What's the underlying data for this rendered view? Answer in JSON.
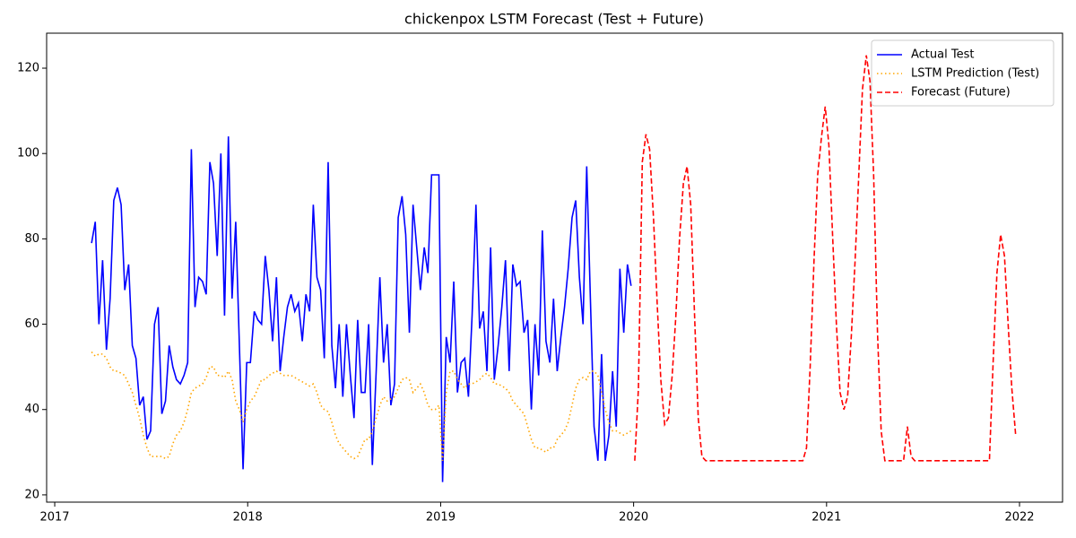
{
  "chart_data": {
    "type": "line",
    "title": "chickenpox LSTM Forecast (Test + Future)",
    "xlim": [
      2016.958,
      2022.223
    ],
    "xticks": [
      2017,
      2018,
      2019,
      2020,
      2021,
      2022
    ],
    "ylim": [
      18.3,
      128.2
    ],
    "yticks": [
      20,
      40,
      60,
      80,
      100,
      120
    ],
    "grid": false,
    "legend": "upper right",
    "series": [
      {
        "name": "Actual Test",
        "color": "#0000ff",
        "style": "solid",
        "x": [
          2017.191,
          2017.21,
          2017.229,
          2017.248,
          2017.268,
          2017.287,
          2017.306,
          2017.325,
          2017.344,
          2017.363,
          2017.383,
          2017.402,
          2017.421,
          2017.44,
          2017.459,
          2017.478,
          2017.497,
          2017.517,
          2017.536,
          2017.555,
          2017.574,
          2017.593,
          2017.612,
          2017.631,
          2017.651,
          2017.67,
          2017.689,
          2017.708,
          2017.727,
          2017.746,
          2017.766,
          2017.785,
          2017.804,
          2017.823,
          2017.842,
          2017.861,
          2017.88,
          2017.9,
          2017.919,
          2017.938,
          2017.957,
          2017.976,
          2017.995,
          2018.014,
          2018.034,
          2018.053,
          2018.072,
          2018.091,
          2018.11,
          2018.129,
          2018.149,
          2018.168,
          2018.187,
          2018.206,
          2018.225,
          2018.244,
          2018.263,
          2018.283,
          2018.302,
          2018.321,
          2018.34,
          2018.359,
          2018.378,
          2018.397,
          2018.417,
          2018.436,
          2018.455,
          2018.474,
          2018.493,
          2018.512,
          2018.532,
          2018.551,
          2018.57,
          2018.589,
          2018.608,
          2018.627,
          2018.646,
          2018.666,
          2018.685,
          2018.704,
          2018.723,
          2018.742,
          2018.761,
          2018.78,
          2018.8,
          2018.819,
          2018.838,
          2018.857,
          2018.876,
          2018.895,
          2018.915,
          2018.934,
          2018.953,
          2018.972,
          2018.991,
          2019.01,
          2019.029,
          2019.049,
          2019.068,
          2019.087,
          2019.106,
          2019.125,
          2019.144,
          2019.163,
          2019.183,
          2019.202,
          2019.221,
          2019.24,
          2019.259,
          2019.278,
          2019.298,
          2019.317,
          2019.336,
          2019.355,
          2019.374,
          2019.393,
          2019.412,
          2019.432,
          2019.451,
          2019.47,
          2019.489,
          2019.508,
          2019.527,
          2019.546,
          2019.566,
          2019.585,
          2019.604,
          2019.623,
          2019.642,
          2019.661,
          2019.681,
          2019.7,
          2019.719,
          2019.738,
          2019.757,
          2019.776,
          2019.795,
          2019.815,
          2019.834,
          2019.853,
          2019.872,
          2019.891,
          2019.91,
          2019.929,
          2019.949,
          2019.968,
          2019.987
        ],
        "values": [
          79,
          84,
          60,
          75,
          54,
          66,
          89,
          92,
          88,
          68,
          74,
          55,
          52,
          41,
          43,
          33,
          35,
          60,
          64,
          39,
          42,
          55,
          50,
          47,
          46,
          48,
          51,
          101,
          64,
          71,
          70,
          67,
          98,
          93,
          76,
          100,
          62,
          104,
          66,
          84,
          55,
          26,
          51,
          51,
          63,
          61,
          60,
          76,
          68,
          56,
          71,
          49,
          57,
          64,
          67,
          63,
          65,
          56,
          67,
          63,
          88,
          71,
          68,
          52,
          98,
          55,
          45,
          60,
          43,
          60,
          48,
          38,
          61,
          44,
          44,
          60,
          27,
          49,
          71,
          51,
          60,
          41,
          46,
          85,
          90,
          81,
          58,
          88,
          78,
          68,
          78,
          72,
          95,
          95,
          95,
          23,
          57,
          51,
          70,
          44,
          51,
          52,
          43,
          62,
          88,
          59,
          63,
          49,
          78,
          47,
          55,
          64,
          75,
          49,
          74,
          69,
          70,
          58,
          61,
          40,
          60,
          48,
          82,
          56,
          51,
          66,
          49,
          57,
          64,
          73,
          85,
          89,
          71,
          60,
          97,
          66,
          36,
          28,
          53,
          28,
          34,
          49,
          36,
          73,
          58,
          74,
          69
        ]
      },
      {
        "name": "LSTM Prediction (Test)",
        "color": "#ffa500",
        "style": "dotted",
        "x": [
          2017.191,
          2017.21,
          2017.229,
          2017.248,
          2017.268,
          2017.287,
          2017.306,
          2017.325,
          2017.344,
          2017.363,
          2017.383,
          2017.402,
          2017.421,
          2017.44,
          2017.459,
          2017.478,
          2017.497,
          2017.517,
          2017.536,
          2017.555,
          2017.574,
          2017.593,
          2017.612,
          2017.631,
          2017.651,
          2017.67,
          2017.689,
          2017.708,
          2017.727,
          2017.746,
          2017.766,
          2017.785,
          2017.804,
          2017.823,
          2017.842,
          2017.861,
          2017.88,
          2017.9,
          2017.919,
          2017.938,
          2017.957,
          2017.976,
          2017.995,
          2018.014,
          2018.034,
          2018.053,
          2018.072,
          2018.091,
          2018.11,
          2018.129,
          2018.149,
          2018.168,
          2018.187,
          2018.206,
          2018.225,
          2018.244,
          2018.263,
          2018.283,
          2018.302,
          2018.321,
          2018.34,
          2018.359,
          2018.378,
          2018.397,
          2018.417,
          2018.436,
          2018.455,
          2018.474,
          2018.493,
          2018.512,
          2018.532,
          2018.551,
          2018.57,
          2018.589,
          2018.608,
          2018.627,
          2018.646,
          2018.666,
          2018.685,
          2018.704,
          2018.723,
          2018.742,
          2018.761,
          2018.78,
          2018.8,
          2018.819,
          2018.838,
          2018.857,
          2018.876,
          2018.895,
          2018.915,
          2018.934,
          2018.953,
          2018.972,
          2018.991,
          2019.01,
          2019.029,
          2019.049,
          2019.068,
          2019.087,
          2019.106,
          2019.125,
          2019.144,
          2019.163,
          2019.183,
          2019.202,
          2019.221,
          2019.24,
          2019.259,
          2019.278,
          2019.298,
          2019.317,
          2019.336,
          2019.355,
          2019.374,
          2019.393,
          2019.412,
          2019.432,
          2019.451,
          2019.47,
          2019.489,
          2019.508,
          2019.527,
          2019.546,
          2019.566,
          2019.585,
          2019.604,
          2019.623,
          2019.642,
          2019.661,
          2019.681,
          2019.7,
          2019.719,
          2019.738,
          2019.757,
          2019.776,
          2019.795,
          2019.815,
          2019.834,
          2019.853,
          2019.872,
          2019.891,
          2019.91,
          2019.929,
          2019.949,
          2019.968,
          2019.987
        ],
        "values": [
          53.5,
          52.5,
          53,
          53,
          52,
          50,
          49,
          49,
          48.5,
          48,
          46,
          44,
          41,
          38,
          34,
          31,
          29,
          29,
          29,
          29,
          28.5,
          29,
          32,
          34,
          35,
          37,
          40,
          44,
          45,
          45.5,
          46,
          47.5,
          50,
          50,
          48,
          48,
          47.5,
          49,
          47,
          42,
          40,
          37,
          40,
          42,
          43,
          45,
          47,
          47,
          48,
          48.5,
          49,
          48.5,
          48,
          48,
          48,
          47.5,
          47,
          46.5,
          46,
          45.5,
          46,
          44,
          41,
          40,
          39.5,
          37,
          34,
          32,
          31,
          30,
          29,
          28.5,
          29,
          31,
          33,
          33,
          35,
          38,
          41,
          43,
          42,
          42.5,
          43,
          45,
          47,
          47.5,
          47,
          44,
          45,
          46,
          44,
          41,
          40,
          40,
          41,
          28,
          44,
          49,
          49,
          47,
          46,
          45,
          46,
          46,
          46.5,
          47,
          48,
          48.5,
          47.5,
          46,
          46,
          45.5,
          45,
          44,
          42,
          41,
          40,
          39,
          36,
          33,
          31,
          31,
          30.5,
          30,
          31,
          31,
          33,
          34,
          35,
          37,
          41,
          45,
          47,
          47.5,
          47,
          49,
          49,
          48,
          44,
          40,
          37,
          35,
          35,
          34.5,
          34,
          34.5,
          35
        ]
      },
      {
        "name": "Forecast (Future)",
        "color": "#ff0000",
        "style": "dashed",
        "x": [
          2020.006,
          2020.025,
          2020.045,
          2020.064,
          2020.083,
          2020.103,
          2020.122,
          2020.141,
          2020.161,
          2020.18,
          2020.2,
          2020.219,
          2020.238,
          2020.258,
          2020.277,
          2020.296,
          2020.316,
          2020.335,
          2020.354,
          2020.374,
          2020.393,
          2020.412,
          2020.432,
          2020.451,
          2020.47,
          2020.49,
          2020.509,
          2020.528,
          2020.548,
          2020.567,
          2020.587,
          2020.606,
          2020.625,
          2020.645,
          2020.664,
          2020.683,
          2020.703,
          2020.722,
          2020.741,
          2020.761,
          2020.78,
          2020.799,
          2020.819,
          2020.838,
          2020.857,
          2020.877,
          2020.896,
          2020.915,
          2020.935,
          2020.954,
          2020.974,
          2020.993,
          2021.012,
          2021.032,
          2021.051,
          2021.07,
          2021.09,
          2021.109,
          2021.128,
          2021.148,
          2021.167,
          2021.186,
          2021.206,
          2021.225,
          2021.244,
          2021.264,
          2021.283,
          2021.302,
          2021.322,
          2021.341,
          2021.361,
          2021.38,
          2021.399,
          2021.419,
          2021.438,
          2021.457,
          2021.477,
          2021.496,
          2021.515,
          2021.535,
          2021.554,
          2021.573,
          2021.593,
          2021.612,
          2021.631,
          2021.651,
          2021.67,
          2021.69,
          2021.709,
          2021.728,
          2021.748,
          2021.767,
          2021.786,
          2021.806,
          2021.825,
          2021.844,
          2021.864,
          2021.883,
          2021.902,
          2021.922,
          2021.941,
          2021.96,
          2021.98
        ],
        "values": [
          28,
          45,
          98,
          104.5,
          101,
          85,
          65,
          47,
          36.5,
          38,
          48,
          62,
          80,
          93,
          97,
          88,
          62,
          38,
          29,
          28,
          28,
          28,
          28,
          28,
          28,
          28,
          28,
          28,
          28,
          28,
          28,
          28,
          28,
          28,
          28,
          28,
          28,
          28,
          28,
          28,
          28,
          28,
          28,
          28,
          28,
          28,
          31,
          50,
          75,
          95,
          104,
          111,
          102,
          80,
          60,
          44,
          40,
          43,
          57,
          75,
          95,
          115,
          123,
          117,
          95,
          58,
          35,
          28,
          28,
          28,
          28,
          28,
          28,
          36,
          29,
          28,
          28,
          28,
          28,
          28,
          28,
          28,
          28,
          28,
          28,
          28,
          28,
          28,
          28,
          28,
          28,
          28,
          28,
          28,
          28,
          28,
          52,
          72,
          81,
          76,
          60,
          45,
          34
        ]
      }
    ]
  }
}
